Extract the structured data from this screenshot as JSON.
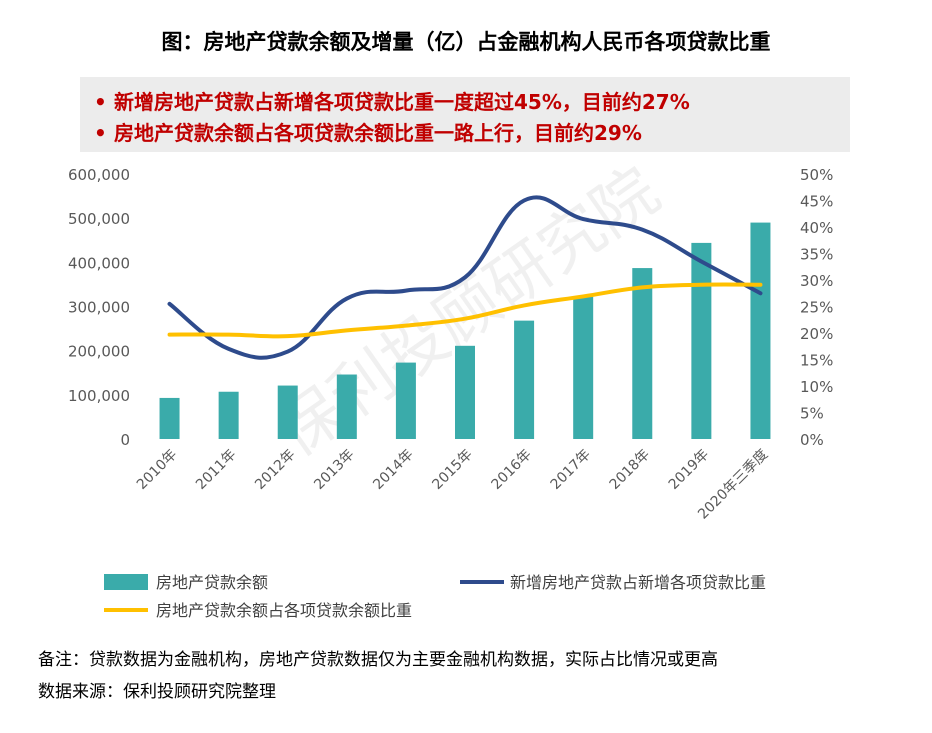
{
  "title": "图：房地产贷款余额及增量（亿）占金融机构人民币各项贷款比重",
  "callout": {
    "bullet": "•",
    "lines": [
      "新增房地产贷款占新增各项贷款比重一度超过45%，目前约27%",
      "房地产贷款余额占各项贷款余额比重一路上行，目前约29%"
    ]
  },
  "watermark": "保利投顾研究院",
  "notes": {
    "remark": "备注：贷款数据为金融机构，房地产贷款数据仅为主要金融机构数据，实际占比情况或更高",
    "source": "数据来源：保利投顾研究院整理"
  },
  "colors": {
    "bar": "#3aabaa",
    "line_new": "#2e4b8c",
    "line_balance": "#ffc000",
    "axis_text": "#595959"
  },
  "chart_data": {
    "type": "bar",
    "categories": [
      "2010年",
      "2011年",
      "2012年",
      "2013年",
      "2014年",
      "2015年",
      "2016年",
      "2017年",
      "2018年",
      "2019年",
      "2020年三季度"
    ],
    "ylim": [
      0,
      600000
    ],
    "yticks": [
      "600,000",
      "500,000",
      "400,000",
      "300,000",
      "200,000",
      "100,000",
      "0"
    ],
    "y2lim": [
      0,
      50
    ],
    "y2ticks": [
      "50%",
      "45%",
      "40%",
      "35%",
      "30%",
      "25%",
      "20%",
      "15%",
      "10%",
      "5%",
      "0%"
    ],
    "series": [
      {
        "name": "房地产贷款余额",
        "type": "bar",
        "axis": "left",
        "values": [
          93000,
          107000,
          121000,
          146000,
          173000,
          211000,
          268000,
          322000,
          387000,
          444000,
          490000
        ]
      },
      {
        "name": "新增房地产贷款占新增各项贷款比重",
        "type": "line",
        "axis": "right",
        "values": [
          25.5,
          17,
          16.5,
          26.5,
          28,
          30.5,
          45,
          41.5,
          39.5,
          33.5,
          27.5
        ]
      },
      {
        "name": "房地产贷款余额占各项贷款余额比重",
        "type": "line",
        "axis": "right",
        "values": [
          19.7,
          19.7,
          19.4,
          20.5,
          21.4,
          22.7,
          25.2,
          26.9,
          28.6,
          29.1,
          29.1
        ]
      }
    ]
  }
}
